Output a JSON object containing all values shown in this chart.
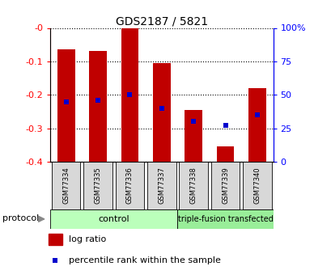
{
  "title": "GDS2187 / 5821",
  "samples": [
    "GSM77334",
    "GSM77335",
    "GSM77336",
    "GSM77337",
    "GSM77338",
    "GSM77339",
    "GSM77340"
  ],
  "bar_tops": [
    -0.065,
    -0.07,
    0.0,
    -0.105,
    -0.245,
    -0.355,
    -0.18
  ],
  "bar_bottom": -0.4,
  "percentile_ranks": [
    45,
    46,
    50,
    40,
    30,
    27,
    35
  ],
  "group_labels": [
    "control",
    "triple-fusion transfected"
  ],
  "control_count": 4,
  "bar_color": "#c00000",
  "dot_color": "#0000cc",
  "ylim_left": [
    -0.4,
    0.0
  ],
  "ylim_right": [
    0,
    100
  ],
  "yticks_left": [
    -0.4,
    -0.3,
    -0.2,
    -0.1,
    0.0
  ],
  "ytick_labels_left": [
    "-0.4",
    "-0.3",
    "-0.2",
    "-0.1",
    "-0"
  ],
  "yticks_right": [
    0,
    25,
    50,
    75,
    100
  ],
  "ytick_labels_right": [
    "0",
    "25",
    "50",
    "75",
    "100%"
  ],
  "bar_width": 0.55,
  "control_bg": "#bbffbb",
  "transfected_bg": "#99ee99",
  "sample_box_bg": "#d8d8d8",
  "legend_log_ratio": "log ratio",
  "legend_percentile": "percentile rank within the sample",
  "protocol_label": "protocol"
}
